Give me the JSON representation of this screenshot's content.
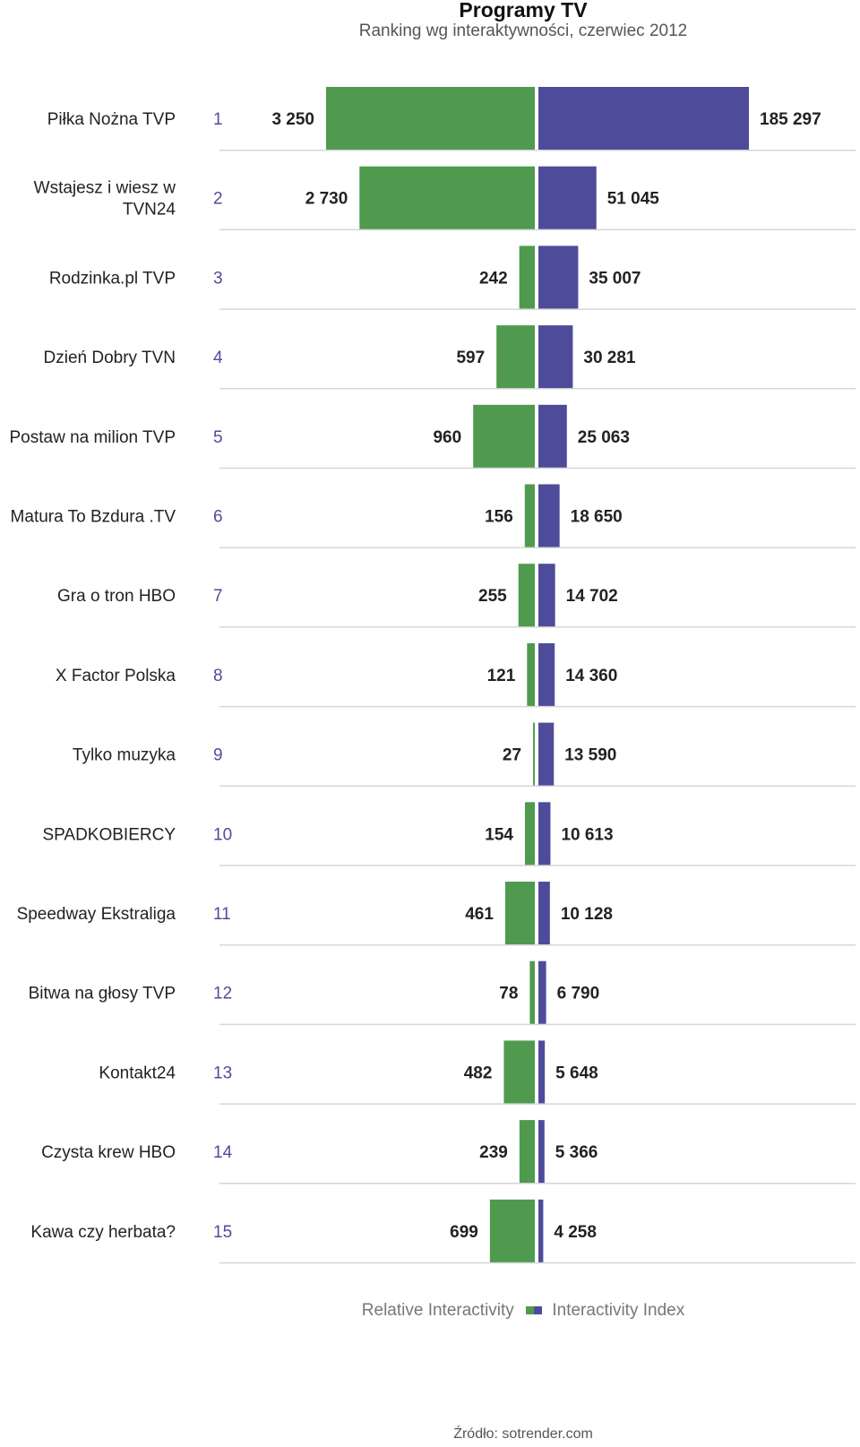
{
  "chart_data": {
    "type": "bar",
    "title": "Programy TV",
    "subtitle": "Ranking wg interaktywności, czerwiec 2012",
    "categories": [
      "Piłka Nożna TVP",
      "Wstajesz i wiesz w TVN24",
      "Rodzinka.pl TVP",
      "Dzień Dobry TVN",
      "Postaw na milion TVP",
      "Matura To Bzdura .TV",
      "Gra o tron HBO",
      "X Factor Polska",
      "Tylko muzyka",
      "SPADKOBIERCY",
      "Speedway Ekstraliga",
      "Bitwa na głosy TVP",
      "Kontakt24",
      "Czysta krew HBO",
      "Kawa czy herbata?"
    ],
    "ranks": [
      "1",
      "2",
      "3",
      "4",
      "5",
      "6",
      "7",
      "8",
      "9",
      "10",
      "11",
      "12",
      "13",
      "14",
      "15"
    ],
    "series": [
      {
        "name": "Relative Interactivity",
        "color": "#4f9a4f",
        "values": [
          3250,
          2730,
          242,
          597,
          960,
          156,
          255,
          121,
          27,
          154,
          461,
          78,
          482,
          239,
          699
        ],
        "labels": [
          "3 250",
          "2 730",
          "242",
          "597",
          "960",
          "156",
          "255",
          "121",
          "27",
          "154",
          "461",
          "78",
          "482",
          "239",
          "699"
        ]
      },
      {
        "name": "Interactivity Index",
        "color": "#4e4c9a",
        "values": [
          185297,
          51045,
          35007,
          30281,
          25063,
          18650,
          14702,
          14360,
          13590,
          10613,
          10128,
          6790,
          5648,
          5366,
          4258
        ],
        "labels": [
          "185 297",
          "51 045",
          "35 007",
          "30 281",
          "25 063",
          "18 650",
          "14 702",
          "14 360",
          "13 590",
          "10 613",
          "10 128",
          "6 790",
          "5 648",
          "5 366",
          "4 258"
        ]
      }
    ],
    "xlim_left": [
      0,
      3250
    ],
    "xlim_right": [
      0,
      185297
    ],
    "legend_position": "bottom",
    "grid": false
  },
  "source": "Źródło: sotrender.com",
  "rank_color": "#4e4c9a"
}
